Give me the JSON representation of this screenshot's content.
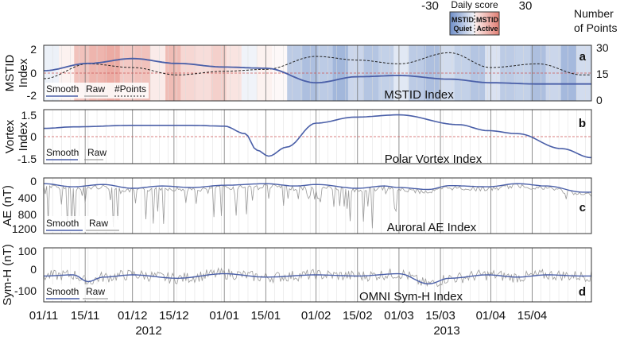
{
  "colorbar": {
    "title": "Daily score",
    "min_label": "-30",
    "max_label": "30",
    "left_label_1": "MSTID",
    "left_label_2": "Quiet",
    "right_label_1": "MSTID",
    "right_label_2": "Active",
    "quiet_color": "#8fa8d4",
    "active_color": "#e89a90"
  },
  "right_axis_title": [
    "Number",
    "of Points"
  ],
  "colors": {
    "smooth": "#4a5fa8",
    "raw": "#9a9a9a",
    "zero_line": "#cc5555"
  },
  "chart_data": [
    {
      "panel": "a",
      "type": "line",
      "title": "MSTID Index",
      "ylabel": [
        "MSTID",
        "Index"
      ],
      "ylim": [
        -2.3,
        2.3
      ],
      "yticks": [
        "2",
        "0",
        "-2"
      ],
      "y2lim": [
        0,
        30
      ],
      "y2ticks": [
        "30",
        "15",
        "0"
      ],
      "legend": [
        "Smooth",
        "Raw",
        "#Points"
      ],
      "x_days": [
        0,
        15,
        30,
        45,
        61,
        75,
        92,
        106,
        120,
        137,
        151,
        167,
        182
      ],
      "series": [
        {
          "name": "Smooth",
          "values": [
            0.2,
            0.8,
            1.2,
            0.8,
            0.5,
            0.4,
            -0.8,
            -0.3,
            -0.2,
            -0.5,
            -0.8,
            -0.9,
            -0.9
          ]
        },
        {
          "name": "#Points",
          "values": [
            12,
            20,
            18,
            14,
            16,
            17,
            24,
            22,
            20,
            26,
            18,
            20,
            14
          ]
        }
      ],
      "score_strip": [
        -5,
        4,
        18,
        22,
        25,
        16,
        18,
        6,
        20,
        12,
        10,
        14,
        8,
        -4,
        4,
        2,
        -18,
        -22,
        -18,
        -25,
        -14,
        -20,
        -16,
        -8,
        -18,
        -22,
        -12,
        -16,
        -20,
        -10,
        -18,
        -16,
        -22,
        -14,
        -24,
        -12
      ]
    },
    {
      "panel": "b",
      "type": "line",
      "title": "Polar Vortex Index",
      "ylabel": [
        "Vortex",
        "Index"
      ],
      "ylim": [
        -1.8,
        1.8
      ],
      "yticks": [
        "1.5",
        "0",
        "-1.5"
      ],
      "legend": [
        "Smooth",
        "Raw"
      ],
      "x_days": [
        0,
        10,
        30,
        50,
        61,
        68,
        72,
        76,
        82,
        92,
        105,
        120,
        140,
        150,
        160,
        175,
        185
      ],
      "series": [
        {
          "name": "Smooth",
          "values": [
            0.55,
            0.65,
            0.75,
            0.75,
            0.7,
            0.2,
            -0.9,
            -1.3,
            -0.7,
            0.9,
            1.3,
            1.45,
            0.8,
            0.4,
            0.2,
            -0.8,
            -1.4
          ]
        }
      ]
    },
    {
      "panel": "c",
      "type": "line",
      "title": "Auroral AE Index",
      "ylabel": [
        "AE (nT)"
      ],
      "ylim": [
        1400,
        -50
      ],
      "yticks": [
        "0",
        "400",
        "800",
        "1200"
      ],
      "legend": [
        "Smooth",
        "Raw"
      ],
      "x_days": [
        0,
        10,
        20,
        30,
        40,
        50,
        61,
        75,
        85,
        92,
        106,
        115,
        120,
        130,
        137,
        150,
        160,
        170,
        182
      ],
      "series": [
        {
          "name": "Smooth",
          "values": [
            100,
            180,
            120,
            220,
            160,
            200,
            140,
            100,
            160,
            120,
            220,
            160,
            200,
            250,
            150,
            180,
            100,
            160,
            320
          ]
        }
      ]
    },
    {
      "panel": "d",
      "type": "line",
      "title": "OMNI Sym-H Index",
      "ylabel": [
        "Sym-H (nT)"
      ],
      "ylim": [
        -130,
        110
      ],
      "yticks": [
        "100",
        "0",
        "-100"
      ],
      "legend": [
        "Smooth",
        "Raw"
      ],
      "x_days": [
        0,
        10,
        15,
        20,
        30,
        45,
        61,
        75,
        92,
        106,
        120,
        130,
        137,
        150,
        160,
        170,
        182
      ],
      "series": [
        {
          "name": "Smooth",
          "values": [
            -15,
            -10,
            -40,
            -20,
            -10,
            -25,
            -5,
            -20,
            -10,
            -15,
            -5,
            -50,
            -25,
            -10,
            -20,
            -10,
            -15
          ]
        }
      ]
    }
  ],
  "x_axis": {
    "tick_labels": [
      "01/11",
      "15/11",
      "01/12",
      "15/12",
      "01/01",
      "15/01",
      "01/02",
      "15/02",
      "01/03",
      "15/03",
      "01/04",
      "15/04"
    ],
    "tick_days": [
      0,
      14,
      30,
      44,
      61,
      75,
      92,
      106,
      120,
      134,
      151,
      165
    ],
    "year_labels": [
      "2012",
      "2013"
    ],
    "total_days": 185
  }
}
